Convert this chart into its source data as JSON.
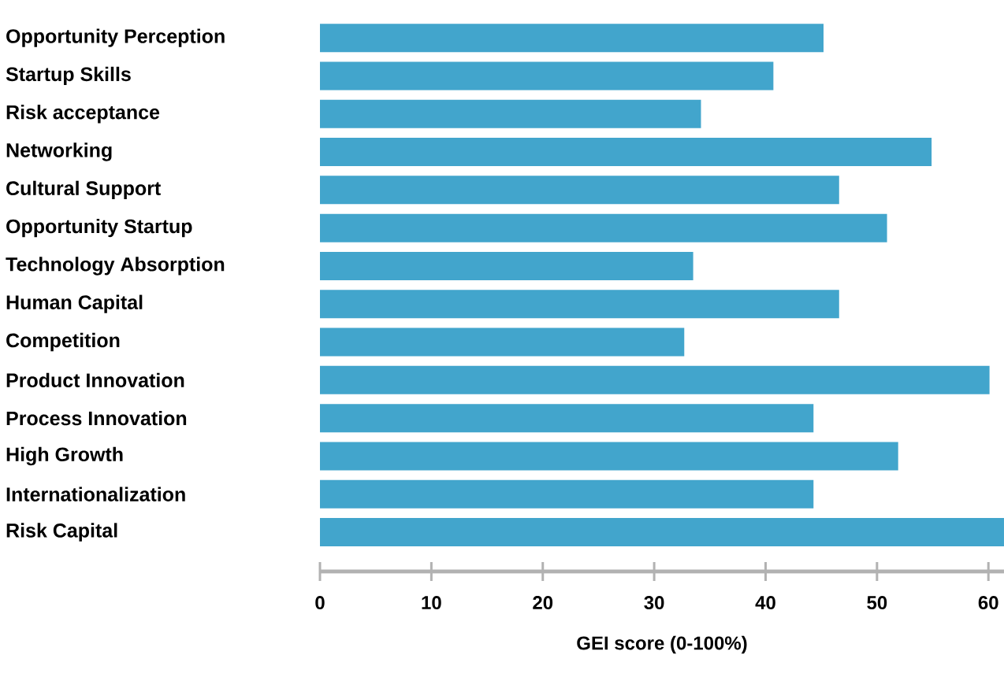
{
  "chart_data": {
    "type": "bar",
    "orientation": "horizontal",
    "categories": [
      "Opportunity Perception",
      "Startup Skills",
      "Risk acceptance",
      "Networking",
      "Cultural Support",
      "Opportunity Startup",
      "Technology Absorption",
      "Human Capital",
      "Competition",
      "Product Innovation",
      "Process Innovation",
      "High Growth",
      "Internationalization",
      "Risk Capital"
    ],
    "values": [
      45.2,
      40.7,
      34.2,
      54.9,
      46.6,
      50.9,
      33.5,
      46.6,
      32.7,
      60.1,
      44.3,
      51.9,
      44.3,
      61.4
    ],
    "color": "#42a5cc",
    "xlabel": "GEI score (0-100%)",
    "xlim": [
      0,
      61.4
    ],
    "xticks": [
      0,
      10,
      20,
      30,
      40,
      50,
      60
    ],
    "grid": false
  }
}
